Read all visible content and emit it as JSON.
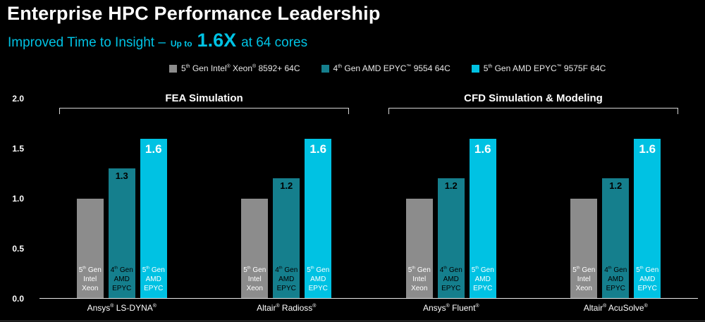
{
  "header": {
    "title": "Enterprise HPC Performance Leadership",
    "subtitle_prefix": "Improved Time to Insight –",
    "subtitle_upto": "Up to",
    "subtitle_value": "1.6X",
    "subtitle_suffix": "at 64 cores",
    "accent_color": "#00c2e3"
  },
  "chart_data": {
    "type": "bar",
    "title": "",
    "xlabel": "",
    "ylabel": "",
    "ylim": [
      0,
      2.0
    ],
    "yticks": [
      "0.0",
      "0.5",
      "1.0",
      "1.5",
      "2.0"
    ],
    "grid": false,
    "legend_position": "top-center",
    "group_headers": [
      {
        "label": "FEA Simulation",
        "span": [
          0,
          1
        ]
      },
      {
        "label": "CFD Simulation & Modeling",
        "span": [
          2,
          3
        ]
      }
    ],
    "categories": [
      "Ansys® LS-DYNA®",
      "Altair® Radioss®",
      "Ansys® Fluent®",
      "Altair® AcuSolve®"
    ],
    "series": [
      {
        "name": "5th Gen Intel® Xeon® 8592+ 64C",
        "short_lines": [
          "5th Gen",
          "Intel",
          "Xeon"
        ],
        "color": "#8c8c8c",
        "text_color": "#ffffff",
        "values": [
          1.0,
          1.0,
          1.0,
          1.0
        ],
        "value_labels": [
          "",
          "",
          "",
          ""
        ],
        "value_label_color": "#ffffff",
        "value_label_big": false
      },
      {
        "name": "4th Gen AMD EPYC™ 9554 64C",
        "short_lines": [
          "4th Gen",
          "AMD",
          "EPYC"
        ],
        "color": "#157f8d",
        "text_color": "#000000",
        "values": [
          1.3,
          1.2,
          1.2,
          1.2
        ],
        "value_labels": [
          "1.3",
          "1.2",
          "1.2",
          "1.2"
        ],
        "value_label_color": "#000000",
        "value_label_big": false
      },
      {
        "name": "5th Gen AMD EPYC™ 9575F 64C",
        "short_lines": [
          "5th Gen",
          "AMD",
          "EPYC"
        ],
        "color": "#00c2e3",
        "text_color": "#ffffff",
        "values": [
          1.6,
          1.6,
          1.6,
          1.6
        ],
        "value_labels": [
          "1.6",
          "1.6",
          "1.6",
          "1.6"
        ],
        "value_label_color": "#ffffff",
        "value_label_big": true
      }
    ]
  }
}
